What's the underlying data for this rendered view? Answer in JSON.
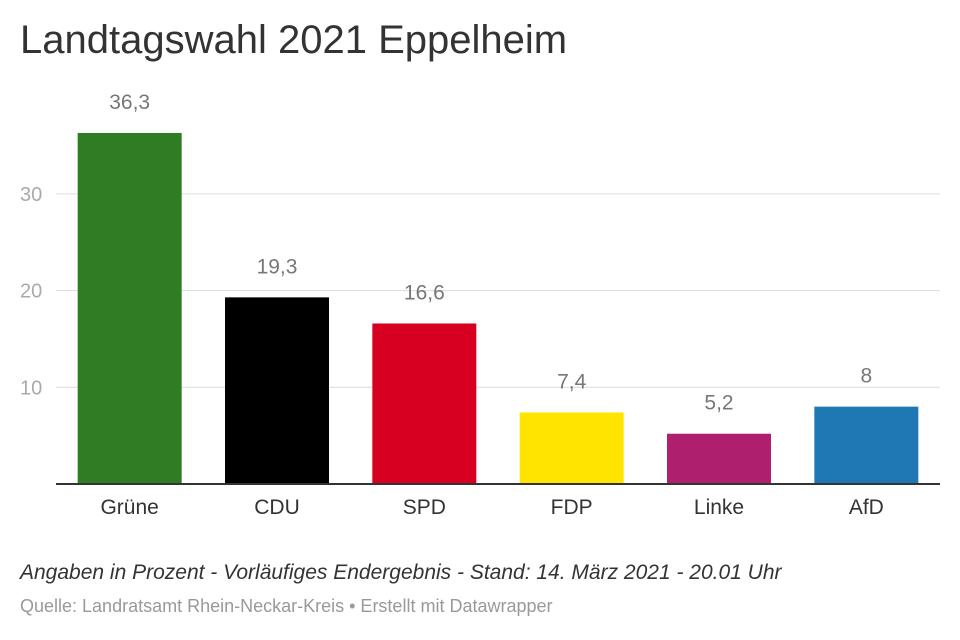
{
  "title": "Landtagswahl 2021 Eppelheim",
  "chart_data": {
    "type": "bar",
    "title": "Landtagswahl 2021 Eppelheim",
    "categories": [
      "Grüne",
      "CDU",
      "SPD",
      "FDP",
      "Linke",
      "AfD"
    ],
    "values": [
      36.3,
      19.3,
      16.6,
      7.4,
      5.2,
      8
    ],
    "value_labels": [
      "36,3",
      "19,3",
      "16,6",
      "7,4",
      "5,2",
      "8"
    ],
    "colors": [
      "#2e7d22",
      "#000000",
      "#d80021",
      "#ffe400",
      "#ae1f6e",
      "#1f77b4"
    ],
    "yticks": [
      10,
      20,
      30
    ],
    "ylim": [
      0,
      36.3
    ],
    "grid": true,
    "xlabel": "",
    "ylabel": ""
  },
  "footer": {
    "notes": "Angaben in Prozent - Vorläufiges Endergebnis - Stand: 14. März 2021 - 20.01 Uhr",
    "source": "Quelle: Landratsamt Rhein-Neckar-Kreis • Erstellt mit Datawrapper"
  }
}
